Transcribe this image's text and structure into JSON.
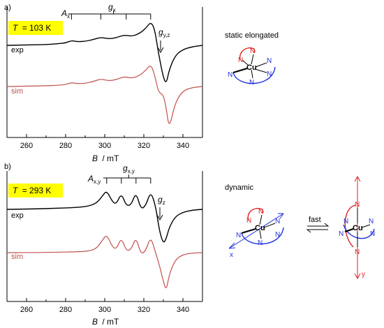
{
  "colors": {
    "exp": "#000000",
    "sim": "#c0504d",
    "highlight": "#ffff00",
    "blue_ligand": "#2233dd",
    "red_ligand": "#dd2222"
  },
  "chart_data": [
    {
      "type": "line",
      "panel_label": "a)",
      "temperature": {
        "var": "T",
        "value": "= 103 K"
      },
      "xlabel": {
        "var": "B",
        "unit": "/ mT"
      },
      "xlim": [
        250,
        350
      ],
      "xticks": [
        "260",
        "280",
        "300",
        "320",
        "340"
      ],
      "yaxis_shown": false,
      "annotations": {
        "hyperfine_label": "A",
        "hyperfine_sub": "x",
        "comb_label": "g",
        "comb_sub": "x",
        "gyz_label": "g",
        "gyz_sub": "y,z",
        "comb_fields": [
          283,
          298,
          311,
          323.5
        ]
      },
      "series": [
        {
          "name": "exp",
          "x": [
            250,
            262,
            270,
            276,
            280,
            283,
            286,
            290,
            294,
            298,
            302,
            306,
            310,
            314,
            318,
            321,
            323.5,
            325.5,
            327.5,
            330,
            331.5,
            333,
            336,
            340,
            345,
            350
          ],
          "y": [
            0.0,
            0.01,
            0.02,
            0.04,
            0.06,
            0.12,
            0.09,
            0.1,
            0.14,
            0.2,
            0.16,
            0.19,
            0.26,
            0.22,
            0.3,
            0.42,
            0.58,
            0.42,
            -0.2,
            -0.8,
            -0.95,
            -0.6,
            -0.25,
            -0.1,
            -0.03,
            0.0
          ]
        },
        {
          "name": "sim",
          "x": [
            250,
            262,
            270,
            276,
            280,
            283,
            286,
            290,
            294,
            298,
            302,
            306,
            310,
            314,
            318,
            321,
            323.5,
            325.5,
            327.5,
            330,
            331.5,
            333,
            336,
            340,
            345,
            350
          ],
          "y": [
            0.0,
            0.01,
            0.02,
            0.03,
            0.05,
            0.1,
            0.07,
            0.08,
            0.12,
            0.19,
            0.14,
            0.17,
            0.25,
            0.2,
            0.28,
            0.4,
            0.55,
            0.3,
            -0.15,
            -0.2,
            -0.55,
            -1.05,
            -0.4,
            -0.1,
            -0.02,
            0.0
          ]
        }
      ]
    },
    {
      "type": "line",
      "panel_label": "b)",
      "temperature": {
        "var": "T",
        "value": "= 293 K"
      },
      "xlabel": {
        "var": "B",
        "unit": "/ mT"
      },
      "xlim": [
        250,
        350
      ],
      "xticks": [
        "260",
        "280",
        "300",
        "320",
        "340"
      ],
      "yaxis_shown": false,
      "annotations": {
        "hyperfine_label": "A",
        "hyperfine_sub": "x,y",
        "comb_label": "g",
        "comb_sub": "x,y",
        "gz_label": "g",
        "gz_sub": "z",
        "comb_fields": [
          301,
          308.5,
          316,
          323.5
        ]
      },
      "series": [
        {
          "name": "exp",
          "x": [
            250,
            262,
            275,
            285,
            292,
            296,
            299,
            301,
            304,
            306,
            308.5,
            311,
            313.5,
            316,
            318.5,
            321,
            323.5,
            326,
            328,
            330,
            331.5,
            333,
            336,
            340,
            345,
            350
          ],
          "y": [
            0.0,
            0.01,
            0.03,
            0.05,
            0.09,
            0.18,
            0.38,
            0.52,
            0.2,
            0.15,
            0.45,
            0.1,
            0.12,
            0.48,
            0.0,
            0.1,
            0.5,
            0.1,
            -0.6,
            -0.95,
            -0.8,
            -0.5,
            -0.2,
            -0.08,
            -0.02,
            0.0
          ]
        },
        {
          "name": "sim",
          "x": [
            250,
            262,
            275,
            285,
            292,
            296,
            299,
            301,
            304,
            306,
            308.5,
            311,
            313.5,
            316,
            318.5,
            321,
            323.5,
            326,
            328,
            330,
            331.5,
            333,
            336,
            340,
            345,
            350
          ],
          "y": [
            0.0,
            0.0,
            0.01,
            0.02,
            0.04,
            0.12,
            0.36,
            0.5,
            0.15,
            0.1,
            0.42,
            0.05,
            0.08,
            0.44,
            -0.05,
            0.05,
            0.45,
            0.0,
            -0.35,
            -0.8,
            -1.05,
            -0.6,
            -0.2,
            -0.05,
            -0.01,
            0.0
          ]
        }
      ]
    }
  ],
  "side_labels": {
    "static": "static elongated",
    "dynamic": "dynamic",
    "fast": "fast",
    "axis_x": "x",
    "axis_y": "y",
    "metal": "Cu",
    "ligand_atom": "N"
  }
}
